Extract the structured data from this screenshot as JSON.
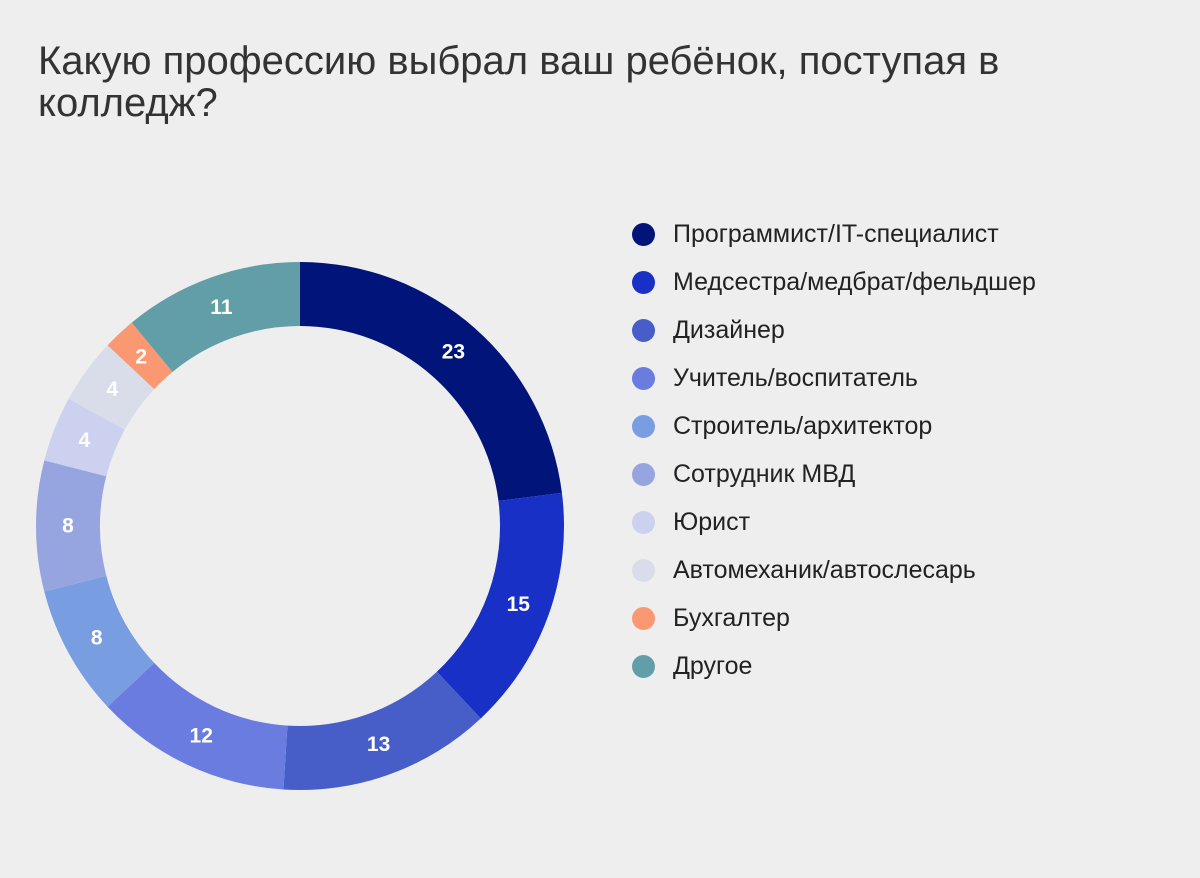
{
  "chart_data": {
    "type": "pie",
    "donut": true,
    "title": "Какую профессию выбрал ваш ребёнок, поступая в колледж?",
    "legend_position": "right",
    "categories": [
      "Программист/IT-специалист",
      "Медсестра/медбрат/фельдшер",
      "Дизайнер",
      "Учитель/воспитатель",
      "Строитель/архитектор",
      "Сотрудник МВД",
      "Юрист",
      "Автомеханик/автослесарь",
      "Бухгалтер",
      "Другое"
    ],
    "values": [
      23,
      15,
      13,
      12,
      8,
      8,
      4,
      4,
      2,
      11
    ],
    "colors": [
      "#001479",
      "#1830c5",
      "#475ec8",
      "#6a7cdf",
      "#789de0",
      "#96a5e0",
      "#cbd1ef",
      "#d9dce9",
      "#fa9872",
      "#629ea8"
    ]
  }
}
